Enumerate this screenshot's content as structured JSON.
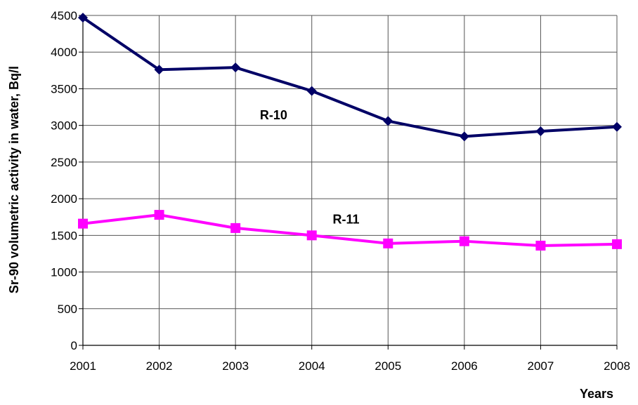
{
  "chart_data": {
    "type": "line",
    "title": "",
    "xlabel": "Years",
    "ylabel": "Sr-90 volumetric activity in water, Bq/l",
    "x": [
      "2001",
      "2002",
      "2003",
      "2004",
      "2005",
      "2006",
      "2007",
      "2008"
    ],
    "ylim": [
      0,
      4500
    ],
    "yticks": [
      "0",
      "500",
      "1000",
      "1500",
      "2000",
      "2500",
      "3000",
      "3500",
      "4000",
      "4500"
    ],
    "grid": true,
    "legend": "none",
    "series": [
      {
        "name": "R-10",
        "values": [
          4470,
          3760,
          3790,
          3470,
          3060,
          2850,
          2920,
          2980
        ],
        "color": "#000066",
        "marker": "diamond"
      },
      {
        "name": "R-11",
        "values": [
          1660,
          1780,
          1600,
          1500,
          1390,
          1420,
          1360,
          1380
        ],
        "color": "#ff00ff",
        "marker": "square"
      }
    ]
  }
}
